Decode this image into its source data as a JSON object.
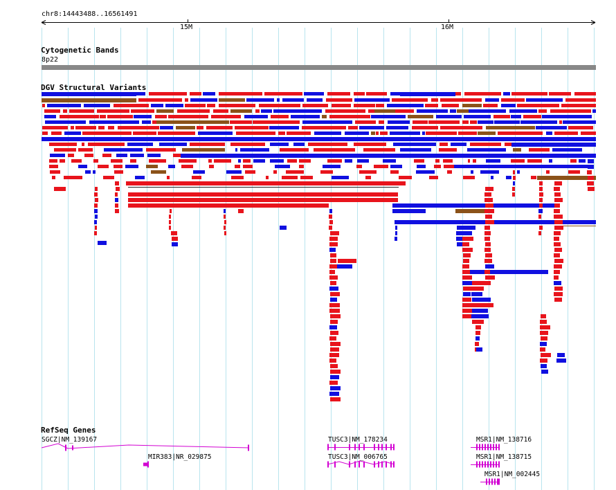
{
  "ruler": {
    "location": "chr8:14443488..16561491",
    "ticks": [
      "15M",
      "16M"
    ]
  },
  "tracks": {
    "cytoband": {
      "title": "Cytogenetic Bands",
      "band": "8p22"
    },
    "dgv": {
      "title": "DGV Structural Variants"
    },
    "refseq": {
      "title": "RefSeq Genes",
      "genes": [
        "SGCZ|NM_139167",
        "MIR383|NR_029875",
        "TUSC3|NM_178234",
        "TUSC3|NM_006765",
        "MSR1|NM_138716",
        "MSR1|NM_138715",
        "MSR1|NM_002445"
      ]
    }
  },
  "colors": {
    "gridline": "#b8e4ee",
    "gain": "#e8141c",
    "loss": "#1010e0",
    "gain_loss": "#8b5219",
    "gene": "#d200d2",
    "band": "#888888"
  }
}
